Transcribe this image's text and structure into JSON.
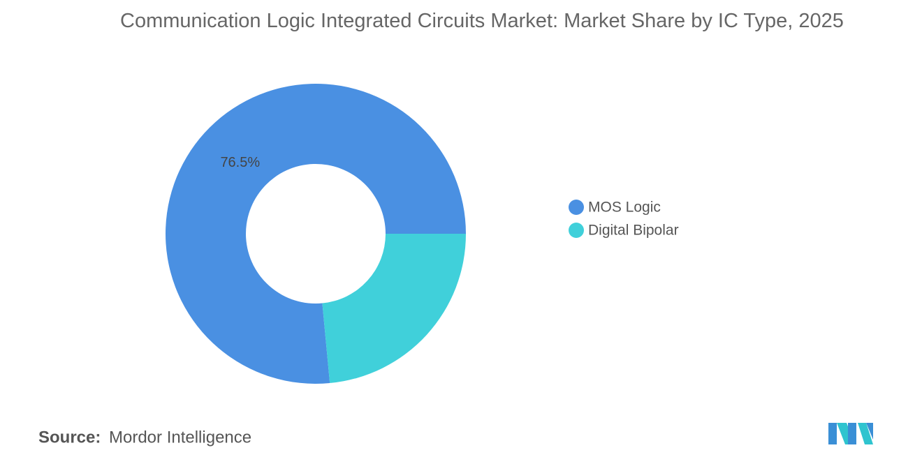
{
  "chart_data": {
    "type": "donut",
    "title": "Communication Logic Integrated Circuits Market: Market Share by IC Type, 2025",
    "categories": [
      "MOS Logic",
      "Digital Bipolar"
    ],
    "values": [
      76.5,
      23.5
    ],
    "value_labels": [
      "76.5%",
      null
    ],
    "colors": [
      "#4a90e2",
      "#40d0da"
    ],
    "legend": "right",
    "source_label": "Source:",
    "source": "Mordor Intelligence"
  }
}
